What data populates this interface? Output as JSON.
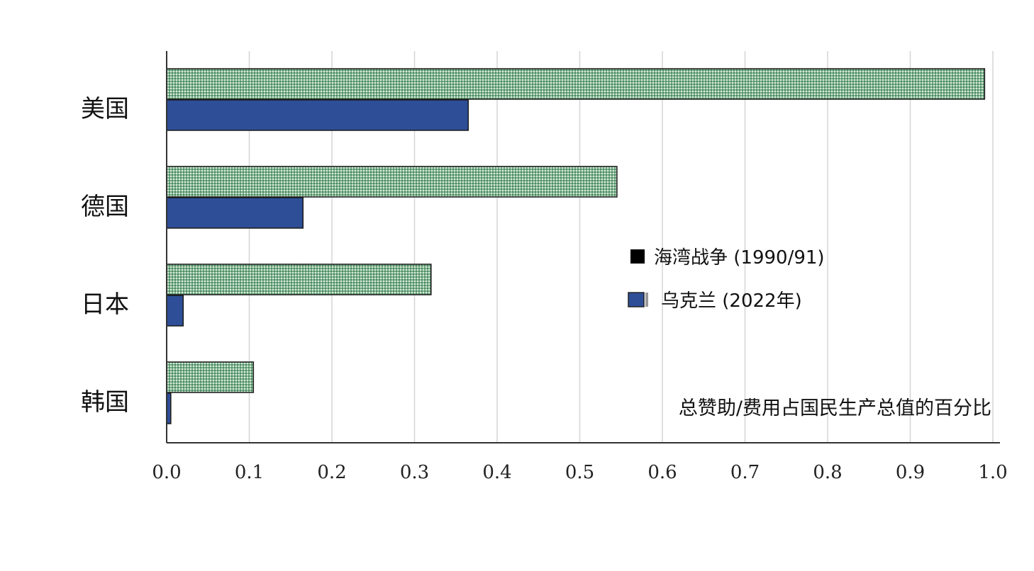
{
  "chart_data": {
    "type": "bar",
    "orientation": "horizontal",
    "categories": [
      "美国",
      "德国",
      "日本",
      "韩国"
    ],
    "series": [
      {
        "name": "海湾战争 (1990/91)",
        "values": [
          0.99,
          0.545,
          0.32,
          0.105
        ],
        "color": "#6da57c"
      },
      {
        "name": "乌克兰 (2022年)",
        "values": [
          0.365,
          0.165,
          0.02,
          0.005
        ],
        "color": "#2e4f97"
      }
    ],
    "xlim": [
      0,
      1.0
    ],
    "xticks": [
      "0.0",
      "0.1",
      "0.2",
      "0.3",
      "0.4",
      "0.5",
      "0.6",
      "0.7",
      "0.8",
      "0.9",
      "1.0"
    ],
    "annotation": "总赞助/费用占国民生产总值的百分比",
    "grid": true,
    "legend_position": "center-right"
  }
}
